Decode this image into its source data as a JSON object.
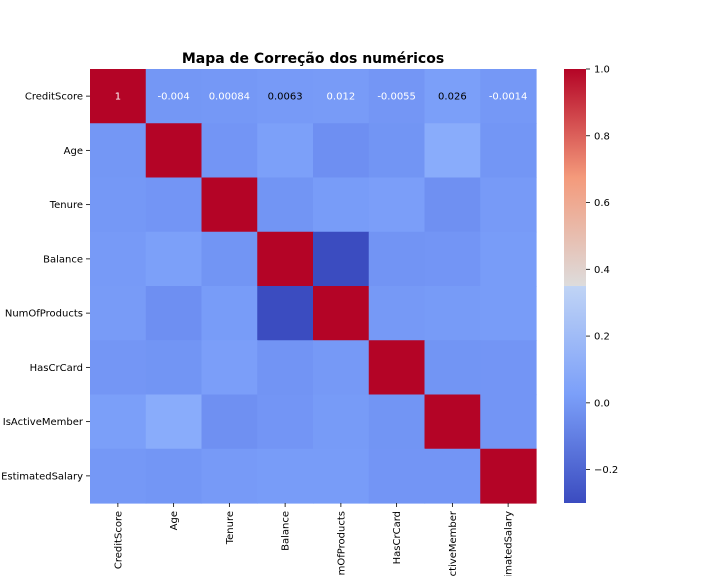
{
  "chart_data": {
    "type": "heatmap",
    "title": "Mapa de Correção dos numéricos",
    "colormap": "coolwarm",
    "vmin": -0.3,
    "vmax": 1.0,
    "labels": [
      "CreditScore",
      "Age",
      "Tenure",
      "Balance",
      "NumOfProducts",
      "HasCrCard",
      "IsActiveMember",
      "EstimatedSalary"
    ],
    "matrix": [
      [
        1.0,
        -0.004,
        0.00084,
        0.0063,
        0.012,
        -0.0055,
        0.026,
        -0.0014
      ],
      [
        -0.004,
        1.0,
        -0.01,
        0.028,
        -0.031,
        -0.012,
        0.085,
        -0.0072
      ],
      [
        0.00084,
        -0.01,
        1.0,
        -0.012,
        0.013,
        0.023,
        -0.028,
        0.0078
      ],
      [
        0.0063,
        0.028,
        -0.012,
        1.0,
        -0.3,
        -0.015,
        -0.01,
        0.013
      ],
      [
        0.012,
        -0.031,
        0.013,
        -0.3,
        1.0,
        0.0032,
        0.0096,
        0.014
      ],
      [
        -0.0055,
        -0.012,
        0.023,
        -0.015,
        0.0032,
        1.0,
        -0.012,
        -0.0099
      ],
      [
        0.026,
        0.085,
        -0.028,
        -0.01,
        0.0096,
        -0.012,
        1.0,
        -0.011
      ],
      [
        -0.0014,
        -0.0072,
        0.0078,
        0.013,
        0.014,
        -0.0099,
        -0.011,
        1.0
      ]
    ],
    "annotated_row_text": [
      "1",
      "-0.004",
      "0.00084",
      "0.0063",
      "0.012",
      "-0.0055",
      "0.026",
      "-0.0014"
    ],
    "colorbar_ticks": [
      -0.2,
      0.0,
      0.2,
      0.4,
      0.6,
      0.8,
      1.0
    ],
    "colorbar_tick_labels": [
      "−0.2",
      "0.0",
      "0.2",
      "0.4",
      "0.6",
      "0.8",
      "1.0"
    ]
  }
}
